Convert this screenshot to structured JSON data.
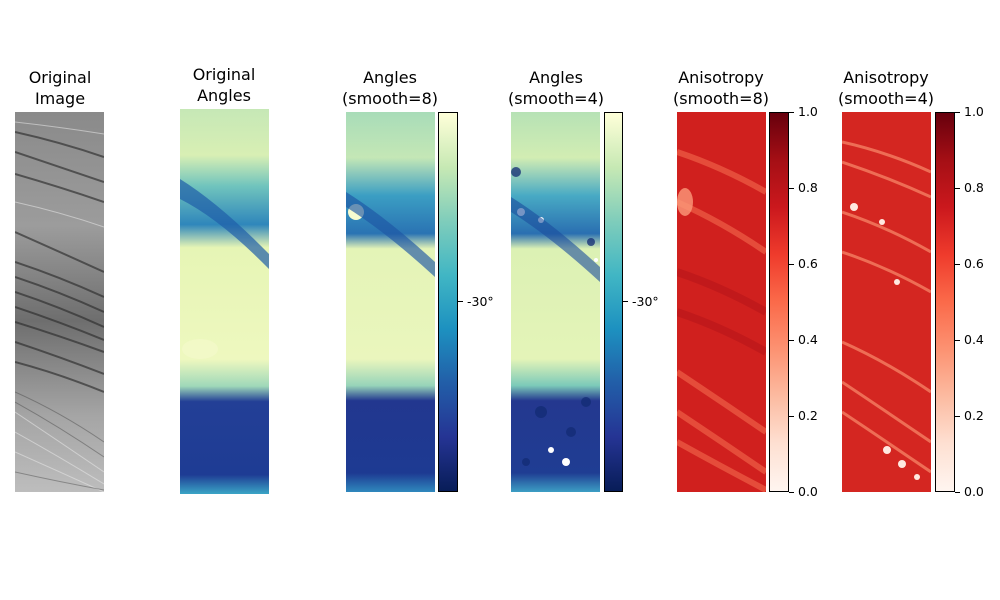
{
  "chart_data": [
    {
      "type": "heatmap",
      "title": "Original\nImage",
      "colormap": "gray",
      "colorbar": null
    },
    {
      "type": "heatmap",
      "title": "Original\nAngles",
      "colormap": "YlGnBu_r",
      "colorbar": null
    },
    {
      "type": "heatmap",
      "title": "Angles\n(smooth=8)",
      "colormap": "YlGnBu_r",
      "colorbar": {
        "ticks": [
          {
            "value": -30,
            "label": "-30°"
          }
        ]
      }
    },
    {
      "type": "heatmap",
      "title": "Angles\n(smooth=4)",
      "colormap": "YlGnBu_r",
      "colorbar": {
        "ticks": [
          {
            "value": -30,
            "label": "-30°"
          }
        ]
      }
    },
    {
      "type": "heatmap",
      "title": "Anisotropy\n(smooth=8)",
      "colormap": "Reds",
      "colorbar": {
        "range": [
          0.0,
          1.0
        ],
        "ticks": [
          {
            "value": 0.0,
            "label": "0.0"
          },
          {
            "value": 0.2,
            "label": "0.2"
          },
          {
            "value": 0.4,
            "label": "0.4"
          },
          {
            "value": 0.6,
            "label": "0.6"
          },
          {
            "value": 0.8,
            "label": "0.8"
          },
          {
            "value": 1.0,
            "label": "1.0"
          }
        ]
      }
    },
    {
      "type": "heatmap",
      "title": "Anisotropy\n(smooth=4)",
      "colormap": "Reds",
      "colorbar": {
        "range": [
          0.0,
          1.0
        ],
        "ticks": [
          {
            "value": 0.0,
            "label": "0.0"
          },
          {
            "value": 0.2,
            "label": "0.2"
          },
          {
            "value": 0.4,
            "label": "0.4"
          },
          {
            "value": 0.6,
            "label": "0.6"
          },
          {
            "value": 0.8,
            "label": "0.8"
          },
          {
            "value": 1.0,
            "label": "1.0"
          }
        ]
      }
    }
  ],
  "colors": {
    "angle_light": "#f6fbc8",
    "angle_mid": "#41b6c4",
    "angle_dark": "#0b1f5e",
    "aniso_light": "#fff5f0",
    "aniso_mid": "#d42621",
    "aniso_dark": "#67000d"
  }
}
